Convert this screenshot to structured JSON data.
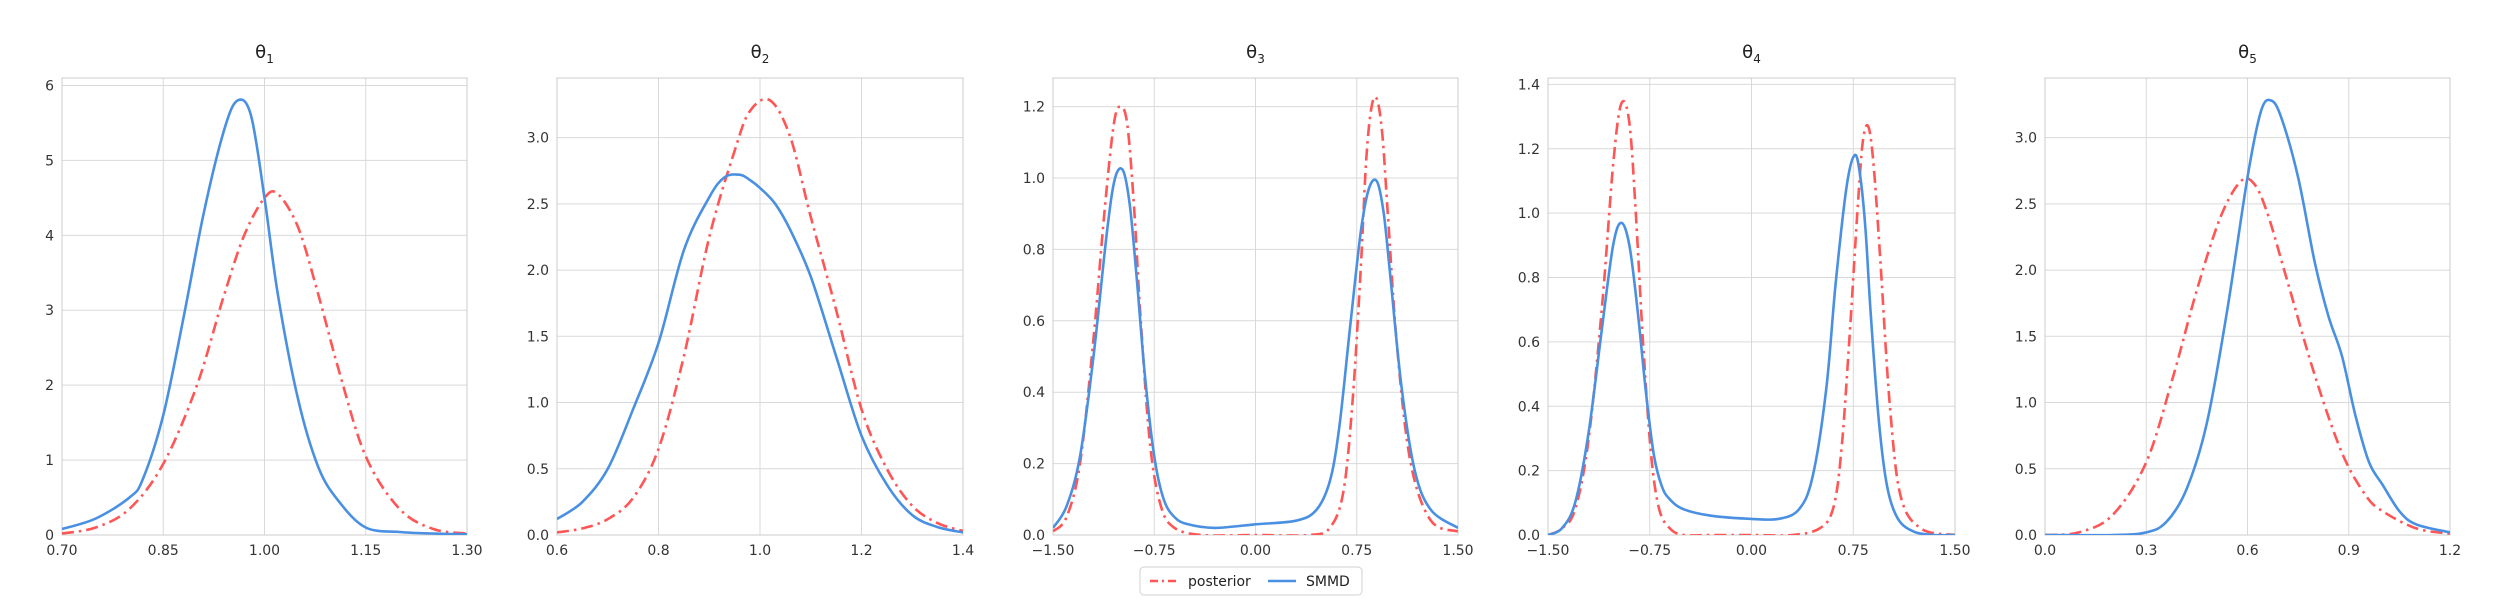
{
  "legend": {
    "placement": "bottom-center",
    "entries": [
      {
        "label": "posterior",
        "color": "#ff5555",
        "style": "dash-dot"
      },
      {
        "label": "SMMD",
        "color": "#4a90e2",
        "style": "solid"
      }
    ]
  },
  "chart_data": [
    {
      "type": "line",
      "title_symbol": "θ",
      "title_sub": "1",
      "xlim": [
        0.7,
        1.3
      ],
      "ylim": [
        0,
        6.1
      ],
      "xticks": [
        0.7,
        0.85,
        1.0,
        1.15,
        1.3
      ],
      "xtick_labels": [
        "0.70",
        "0.85",
        "1.00",
        "1.15",
        "1.30"
      ],
      "yticks": [
        0,
        1,
        2,
        3,
        4,
        5,
        6
      ],
      "ytick_labels": [
        "0",
        "1",
        "2",
        "3",
        "4",
        "5",
        "6"
      ],
      "grid": true,
      "series": [
        {
          "name": "posterior",
          "color": "#ff5555",
          "style": "dash-dot",
          "x": [
            0.7,
            0.75,
            0.8,
            0.85,
            0.9,
            0.94,
            0.97,
            1.0,
            1.02,
            1.05,
            1.08,
            1.11,
            1.15,
            1.2,
            1.25,
            1.3
          ],
          "y": [
            0.02,
            0.1,
            0.35,
            0.95,
            2.0,
            3.2,
            4.0,
            4.5,
            4.55,
            4.1,
            3.2,
            2.2,
            1.05,
            0.35,
            0.08,
            0.02
          ]
        },
        {
          "name": "SMMD",
          "color": "#4a90e2",
          "style": "solid",
          "x": [
            0.7,
            0.75,
            0.8,
            0.82,
            0.85,
            0.88,
            0.91,
            0.94,
            0.96,
            0.98,
            1.0,
            1.02,
            1.05,
            1.08,
            1.11,
            1.15,
            1.2,
            1.25,
            1.3
          ],
          "y": [
            0.08,
            0.22,
            0.5,
            0.75,
            1.6,
            2.9,
            4.3,
            5.4,
            5.8,
            5.6,
            4.5,
            3.2,
            1.8,
            0.9,
            0.45,
            0.1,
            0.04,
            0.02,
            0.01
          ]
        }
      ]
    },
    {
      "type": "line",
      "title_symbol": "θ",
      "title_sub": "2",
      "xlim": [
        0.6,
        1.4
      ],
      "ylim": [
        0,
        3.45
      ],
      "xticks": [
        0.6,
        0.8,
        1.0,
        1.2,
        1.4
      ],
      "xtick_labels": [
        "0.6",
        "0.8",
        "1.0",
        "1.2",
        "1.4"
      ],
      "yticks": [
        0,
        0.5,
        1.0,
        1.5,
        2.0,
        2.5,
        3.0
      ],
      "ytick_labels": [
        "0.0",
        "0.5",
        "1.0",
        "1.5",
        "2.0",
        "2.5",
        "3.0"
      ],
      "grid": true,
      "series": [
        {
          "name": "posterior",
          "color": "#ff5555",
          "style": "dash-dot",
          "x": [
            0.6,
            0.65,
            0.7,
            0.75,
            0.8,
            0.85,
            0.9,
            0.95,
            0.98,
            1.02,
            1.06,
            1.1,
            1.15,
            1.2,
            1.25,
            1.3,
            1.35,
            1.4
          ],
          "y": [
            0.02,
            0.05,
            0.12,
            0.28,
            0.65,
            1.35,
            2.25,
            2.9,
            3.2,
            3.28,
            3.0,
            2.4,
            1.7,
            0.95,
            0.5,
            0.22,
            0.09,
            0.03
          ]
        },
        {
          "name": "SMMD",
          "color": "#4a90e2",
          "style": "solid",
          "x": [
            0.6,
            0.65,
            0.7,
            0.75,
            0.8,
            0.85,
            0.9,
            0.93,
            0.96,
            0.98,
            1.0,
            1.03,
            1.06,
            1.1,
            1.15,
            1.2,
            1.25,
            1.3,
            1.35,
            1.4
          ],
          "y": [
            0.12,
            0.25,
            0.5,
            0.95,
            1.45,
            2.15,
            2.55,
            2.7,
            2.72,
            2.68,
            2.62,
            2.5,
            2.3,
            1.95,
            1.35,
            0.75,
            0.38,
            0.15,
            0.06,
            0.02
          ]
        }
      ]
    },
    {
      "type": "line",
      "title_symbol": "θ",
      "title_sub": "3",
      "xlim": [
        -1.5,
        1.5
      ],
      "ylim": [
        0,
        1.28
      ],
      "xticks": [
        -1.5,
        -0.75,
        0.0,
        0.75,
        1.5
      ],
      "xtick_labels": [
        "−1.50",
        "−0.75",
        "0.00",
        "0.75",
        "1.50"
      ],
      "yticks": [
        0,
        0.2,
        0.4,
        0.6,
        0.8,
        1.0,
        1.2
      ],
      "ytick_labels": [
        "0.0",
        "0.2",
        "0.4",
        "0.6",
        "0.8",
        "1.0",
        "1.2"
      ],
      "grid": true,
      "series": [
        {
          "name": "posterior",
          "color": "#ff5555",
          "style": "dash-dot",
          "x": [
            -1.5,
            -1.4,
            -1.3,
            -1.2,
            -1.12,
            -1.05,
            -1.0,
            -0.95,
            -0.9,
            -0.85,
            -0.78,
            -0.7,
            -0.6,
            -0.4,
            0.0,
            0.4,
            0.55,
            0.65,
            0.72,
            0.78,
            0.82,
            0.86,
            0.9,
            0.94,
            0.98,
            1.05,
            1.15,
            1.3,
            1.5
          ],
          "y": [
            0.01,
            0.05,
            0.2,
            0.55,
            0.9,
            1.15,
            1.2,
            1.15,
            0.92,
            0.6,
            0.25,
            0.08,
            0.02,
            0.0,
            0.0,
            0.0,
            0.02,
            0.12,
            0.38,
            0.75,
            1.05,
            1.2,
            1.22,
            1.12,
            0.9,
            0.52,
            0.2,
            0.04,
            0.01
          ]
        },
        {
          "name": "SMMD",
          "color": "#4a90e2",
          "style": "solid",
          "x": [
            -1.5,
            -1.4,
            -1.3,
            -1.2,
            -1.1,
            -1.04,
            -0.98,
            -0.93,
            -0.88,
            -0.82,
            -0.75,
            -0.68,
            -0.6,
            -0.5,
            -0.3,
            0.0,
            0.3,
            0.45,
            0.55,
            0.62,
            0.7,
            0.78,
            0.84,
            0.9,
            0.95,
            1.0,
            1.08,
            1.18,
            1.3,
            1.5
          ],
          "y": [
            0.02,
            0.08,
            0.22,
            0.5,
            0.85,
            1.0,
            1.02,
            0.92,
            0.72,
            0.45,
            0.22,
            0.1,
            0.05,
            0.03,
            0.02,
            0.03,
            0.04,
            0.07,
            0.15,
            0.3,
            0.58,
            0.85,
            0.97,
            0.99,
            0.9,
            0.72,
            0.42,
            0.18,
            0.07,
            0.02
          ]
        }
      ]
    },
    {
      "type": "line",
      "title_symbol": "θ",
      "title_sub": "4",
      "xlim": [
        -1.5,
        1.5
      ],
      "ylim": [
        0,
        1.42
      ],
      "xticks": [
        -1.5,
        -0.75,
        0.0,
        0.75,
        1.5
      ],
      "xtick_labels": [
        "−1.50",
        "−0.75",
        "0.00",
        "0.75",
        "1.50"
      ],
      "yticks": [
        0,
        0.2,
        0.4,
        0.6,
        0.8,
        1.0,
        1.2,
        1.4
      ],
      "ytick_labels": [
        "0.0",
        "0.2",
        "0.4",
        "0.6",
        "0.8",
        "1.0",
        "1.2",
        "1.4"
      ],
      "grid": true,
      "series": [
        {
          "name": "posterior",
          "color": "#ff5555",
          "style": "dash-dot",
          "x": [
            -1.5,
            -1.4,
            -1.3,
            -1.2,
            -1.1,
            -1.02,
            -0.96,
            -0.9,
            -0.85,
            -0.8,
            -0.74,
            -0.68,
            -0.6,
            -0.5,
            -0.3,
            0.0,
            0.3,
            0.5,
            0.6,
            0.66,
            0.72,
            0.78,
            0.82,
            0.86,
            0.9,
            0.95,
            1.02,
            1.1,
            1.25,
            1.5
          ],
          "y": [
            0.0,
            0.02,
            0.08,
            0.3,
            0.72,
            1.15,
            1.34,
            1.28,
            0.98,
            0.6,
            0.25,
            0.08,
            0.02,
            0.0,
            0.0,
            0.0,
            0.0,
            0.02,
            0.08,
            0.25,
            0.6,
            1.0,
            1.22,
            1.27,
            1.15,
            0.85,
            0.4,
            0.12,
            0.02,
            0.0
          ]
        },
        {
          "name": "SMMD",
          "color": "#4a90e2",
          "style": "solid",
          "x": [
            -1.5,
            -1.4,
            -1.3,
            -1.2,
            -1.1,
            -1.02,
            -0.96,
            -0.9,
            -0.84,
            -0.78,
            -0.72,
            -0.66,
            -0.6,
            -0.5,
            -0.3,
            0.0,
            0.2,
            0.35,
            0.45,
            0.55,
            0.62,
            0.7,
            0.76,
            0.8,
            0.84,
            0.88,
            0.94,
            1.0,
            1.08,
            1.2,
            1.35,
            1.5
          ],
          "y": [
            0.0,
            0.02,
            0.1,
            0.32,
            0.65,
            0.9,
            0.97,
            0.9,
            0.7,
            0.45,
            0.25,
            0.15,
            0.11,
            0.08,
            0.06,
            0.05,
            0.05,
            0.08,
            0.18,
            0.45,
            0.78,
            1.08,
            1.18,
            1.12,
            0.95,
            0.68,
            0.35,
            0.15,
            0.05,
            0.01,
            0.0,
            0.0
          ]
        }
      ]
    },
    {
      "type": "line",
      "title_symbol": "θ",
      "title_sub": "5",
      "xlim": [
        0.0,
        1.2
      ],
      "ylim": [
        0,
        3.45
      ],
      "xticks": [
        0.0,
        0.3,
        0.6,
        0.9,
        1.2
      ],
      "xtick_labels": [
        "0.0",
        "0.3",
        "0.6",
        "0.9",
        "1.2"
      ],
      "yticks": [
        0,
        0.5,
        1.0,
        1.5,
        2.0,
        2.5,
        3.0
      ],
      "ytick_labels": [
        "0.0",
        "0.5",
        "1.0",
        "1.5",
        "2.0",
        "2.5",
        "3.0"
      ],
      "grid": true,
      "series": [
        {
          "name": "posterior",
          "color": "#ff5555",
          "style": "dash-dot",
          "x": [
            0.0,
            0.1,
            0.2,
            0.3,
            0.38,
            0.45,
            0.52,
            0.58,
            0.62,
            0.66,
            0.72,
            0.8,
            0.88,
            0.95,
            1.0,
            1.1,
            1.2
          ],
          "y": [
            0.0,
            0.02,
            0.15,
            0.55,
            1.2,
            1.85,
            2.4,
            2.67,
            2.65,
            2.42,
            1.9,
            1.2,
            0.62,
            0.3,
            0.18,
            0.05,
            0.01
          ]
        },
        {
          "name": "SMMD",
          "color": "#4a90e2",
          "style": "solid",
          "x": [
            0.0,
            0.2,
            0.3,
            0.36,
            0.42,
            0.48,
            0.54,
            0.6,
            0.64,
            0.67,
            0.7,
            0.75,
            0.8,
            0.84,
            0.88,
            0.92,
            0.96,
            1.0,
            1.05,
            1.1,
            1.2
          ],
          "y": [
            0.0,
            0.0,
            0.02,
            0.1,
            0.35,
            0.85,
            1.7,
            2.7,
            3.2,
            3.28,
            3.15,
            2.7,
            2.05,
            1.65,
            1.35,
            0.9,
            0.55,
            0.38,
            0.18,
            0.08,
            0.02
          ]
        }
      ]
    }
  ]
}
